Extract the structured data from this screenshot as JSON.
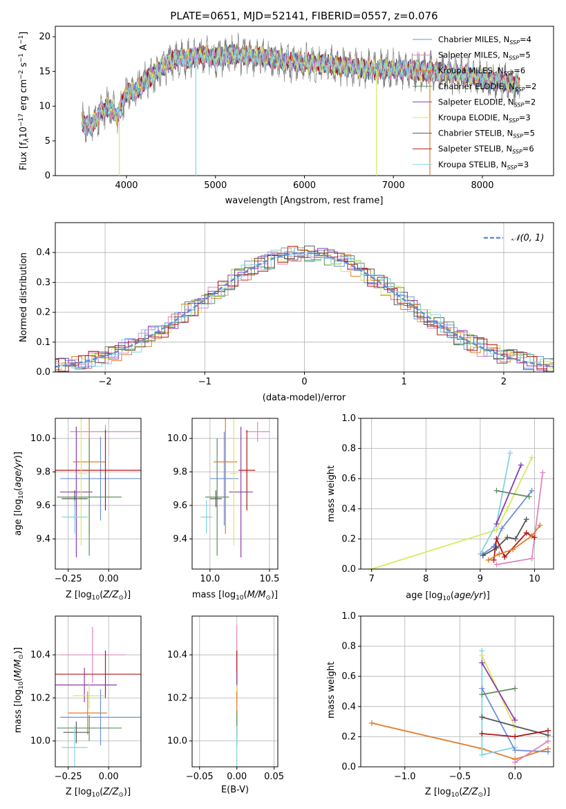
{
  "figure": {
    "title": "PLATE=0651, MJD=52141, FIBERID=0557, z=0.076"
  },
  "colors": {
    "chabrier_miles": "#6a8fe0",
    "salpeter_miles": "#e085c2",
    "kroupa_miles": "#e07b28",
    "chabrier_elodie": "#5b8f5b",
    "salpeter_elodie": "#8e3ab0",
    "kroupa_elodie": "#d9e85c",
    "chabrier_stelib": "#555555",
    "salpeter_stelib": "#b01515",
    "kroupa_stelib": "#7fd4e0",
    "data": "#808080",
    "gauss": "#5b8fd9"
  },
  "chart_data": [
    {
      "id": "spectrum",
      "type": "line",
      "xlabel": "wavelength [Angstrom, rest frame]",
      "ylabel": "Flux [f_λ10^-17 erg cm^-2 s^-1 A^-1]",
      "xlim": [
        3200,
        8800
      ],
      "ylim": [
        0,
        21.5
      ],
      "xticks": [
        4000,
        5000,
        6000,
        7000,
        8000
      ],
      "yticks": [
        0,
        5,
        10,
        15,
        20
      ],
      "continuum": {
        "x": [
          3500,
          3600,
          3700,
          3800,
          3900,
          4000,
          4100,
          4200,
          4300,
          4400,
          4500,
          4600,
          4700,
          4800,
          4900,
          5000,
          5200,
          5400,
          5600,
          5800,
          6000,
          6200,
          6400,
          6600,
          6800,
          7000,
          7200,
          7400,
          7600,
          7800,
          8000,
          8200,
          8400
        ],
        "y": [
          7.5,
          7.0,
          9.0,
          10.0,
          8.5,
          12.0,
          12.0,
          13.5,
          14.5,
          15.5,
          16.5,
          17.0,
          16.8,
          17.2,
          17.3,
          17.0,
          17.5,
          17.2,
          17.0,
          16.5,
          16.3,
          16.0,
          15.8,
          15.5,
          15.3,
          15.4,
          15.2,
          15.0,
          14.8,
          14.5,
          14.0,
          13.5,
          13.0
        ]
      },
      "legend": [
        {
          "label": "Chabrier MILES, N",
          "sub": "SSP",
          "tail": "=4",
          "color_key": "chabrier_miles"
        },
        {
          "label": "Salpeter MILES, N",
          "sub": "SSP",
          "tail": "=5",
          "color_key": "salpeter_miles"
        },
        {
          "label": "Kroupa MILES, N",
          "sub": "SSP",
          "tail": "=6",
          "color_key": "kroupa_miles"
        },
        {
          "label": "Chabrier ELODIE, N",
          "sub": "SSP",
          "tail": "=2",
          "color_key": "chabrier_elodie"
        },
        {
          "label": "Salpeter ELODIE, N",
          "sub": "SSP",
          "tail": "=2",
          "color_key": "salpeter_elodie"
        },
        {
          "label": "Kroupa ELODIE, N",
          "sub": "SSP",
          "tail": "=3",
          "color_key": "kroupa_elodie"
        },
        {
          "label": "Chabrier STELIB, N",
          "sub": "SSP",
          "tail": "=5",
          "color_key": "chabrier_stelib"
        },
        {
          "label": "Salpeter STELIB, N",
          "sub": "SSP",
          "tail": "=6",
          "color_key": "salpeter_stelib"
        },
        {
          "label": "Kroupa STELIB, N",
          "sub": "SSP",
          "tail": "=3",
          "color_key": "kroupa_stelib"
        }
      ]
    },
    {
      "id": "residuals",
      "type": "histogram",
      "xlabel": "(data-model)/error",
      "ylabel": "Normed distribution",
      "xlim": [
        -2.5,
        2.5
      ],
      "ylim": [
        0,
        0.5
      ],
      "xticks": [
        -2,
        -1,
        0,
        1,
        2
      ],
      "yticks": [
        0.0,
        0.1,
        0.2,
        0.3,
        0.4
      ],
      "legend": "𝒩(0, 1)",
      "gauss_mean": 0,
      "gauss_sigma": 1,
      "grid": true
    },
    {
      "id": "age_vs_Z",
      "type": "scatter",
      "xlabel": "Z [log10(Z/Z⊙)]",
      "ylabel": "age [log10(age/yr)]",
      "xlim": [
        -0.33,
        0.2
      ],
      "ylim": [
        9.22,
        10.12
      ],
      "xticks": [
        -0.25,
        0.0
      ],
      "yticks": [
        9.4,
        9.6,
        9.8,
        10.0
      ],
      "points": [
        {
          "key": "salpeter_miles",
          "x": -0.02,
          "y": 10.04,
          "xe": 0.22,
          "ye": 0.04
        },
        {
          "key": "chabrier_miles",
          "x": -0.05,
          "y": 9.76,
          "xe": 0.25,
          "ye": 0.25
        },
        {
          "key": "kroupa_miles",
          "x": -0.12,
          "y": 9.86,
          "xe": 0.1,
          "ye": 0.43
        },
        {
          "key": "salpeter_stelib",
          "x": -0.02,
          "y": 9.81,
          "xe": 0.35,
          "ye": 0.24
        },
        {
          "key": "salpeter_elodie",
          "x": -0.2,
          "y": 9.68,
          "xe": 0.1,
          "ye": 0.39
        },
        {
          "key": "kroupa_elodie",
          "x": -0.17,
          "y": 9.79,
          "xe": 0.04,
          "ye": 0.43
        },
        {
          "key": "chabrier_elodie",
          "x": -0.12,
          "y": 9.65,
          "xe": 0.2,
          "ye": 0.35
        },
        {
          "key": "chabrier_stelib",
          "x": -0.21,
          "y": 9.64,
          "xe": 0.08,
          "ye": 0.05
        },
        {
          "key": "kroupa_stelib",
          "x": -0.21,
          "y": 9.53,
          "xe": 0.08,
          "ye": 0.1
        }
      ]
    },
    {
      "id": "age_vs_mass",
      "type": "scatter",
      "xlabel": "mass [log10(M/M⊙)]",
      "xlim": [
        9.85,
        10.57
      ],
      "ylim": [
        9.22,
        10.12
      ],
      "xticks": [
        10.0,
        10.5
      ],
      "yticks": [
        9.4,
        9.6,
        9.8,
        10.0
      ],
      "points": [
        {
          "key": "salpeter_miles",
          "x": 10.4,
          "y": 10.04,
          "xe": 0.1,
          "ye": 0.06
        },
        {
          "key": "chabrier_miles",
          "x": 10.12,
          "y": 9.76,
          "xe": 0.12,
          "ye": 0.28
        },
        {
          "key": "kroupa_miles",
          "x": 10.13,
          "y": 9.86,
          "xe": 0.1,
          "ye": 0.43
        },
        {
          "key": "salpeter_stelib",
          "x": 10.31,
          "y": 9.81,
          "xe": 0.07,
          "ye": 0.24
        },
        {
          "key": "salpeter_elodie",
          "x": 10.26,
          "y": 9.68,
          "xe": 0.1,
          "ye": 0.39
        },
        {
          "key": "kroupa_elodie",
          "x": 10.2,
          "y": 9.79,
          "xe": 0.03,
          "ye": 0.43
        },
        {
          "key": "chabrier_elodie",
          "x": 10.06,
          "y": 9.65,
          "xe": 0.1,
          "ye": 0.35
        },
        {
          "key": "chabrier_stelib",
          "x": 10.05,
          "y": 9.64,
          "xe": 0.05,
          "ye": 0.05
        },
        {
          "key": "kroupa_stelib",
          "x": 9.97,
          "y": 9.53,
          "xe": 0.05,
          "ye": 0.1
        }
      ]
    },
    {
      "id": "weight_vs_age",
      "type": "line",
      "xlabel": "age [log10(age/yr)]",
      "ylabel": "mass weight",
      "xlim": [
        6.8,
        10.35
      ],
      "ylim": [
        0,
        1.0
      ],
      "xticks": [
        7,
        8,
        9,
        10
      ],
      "yticks": [
        0.0,
        0.2,
        0.4,
        0.6,
        0.8,
        1.0
      ],
      "series": [
        {
          "key": "kroupa_elodie",
          "points": [
            [
              7.0,
              0.0
            ],
            [
              9.3,
              0.26
            ],
            [
              9.5,
              0.4
            ],
            [
              9.95,
              0.74
            ]
          ]
        },
        {
          "key": "kroupa_stelib",
          "points": [
            [
              9.0,
              0.1
            ],
            [
              9.3,
              0.3
            ],
            [
              9.55,
              0.77
            ]
          ]
        },
        {
          "key": "salpeter_elodie",
          "points": [
            [
              9.3,
              0.3
            ],
            [
              9.75,
              0.69
            ]
          ]
        },
        {
          "key": "chabrier_miles",
          "points": [
            [
              9.05,
              0.1
            ],
            [
              9.25,
              0.15
            ],
            [
              9.4,
              0.27
            ],
            [
              9.95,
              0.52
            ]
          ]
        },
        {
          "key": "chabrier_elodie",
          "points": [
            [
              9.3,
              0.52
            ],
            [
              9.9,
              0.48
            ]
          ]
        },
        {
          "key": "salpeter_miles",
          "points": [
            [
              9.3,
              0.03
            ],
            [
              9.95,
              0.07
            ],
            [
              10.15,
              0.64
            ]
          ]
        },
        {
          "key": "chabrier_stelib",
          "points": [
            [
              9.05,
              0.09
            ],
            [
              9.3,
              0.14
            ],
            [
              9.5,
              0.21
            ],
            [
              9.65,
              0.2
            ],
            [
              9.85,
              0.33
            ]
          ]
        },
        {
          "key": "salpeter_stelib",
          "points": [
            [
              9.25,
              0.06
            ],
            [
              9.3,
              0.2
            ],
            [
              9.45,
              0.08
            ],
            [
              9.85,
              0.24
            ],
            [
              10.0,
              0.21
            ]
          ]
        },
        {
          "key": "kroupa_miles",
          "points": [
            [
              9.15,
              0.06
            ],
            [
              9.35,
              0.1
            ],
            [
              9.6,
              0.13
            ],
            [
              9.95,
              0.22
            ],
            [
              10.1,
              0.29
            ]
          ]
        }
      ]
    },
    {
      "id": "mass_vs_Z",
      "type": "scatter",
      "xlabel": "Z [log10(Z/Z⊙)]",
      "ylabel": "mass [log10(M/M⊙)]",
      "xlim": [
        -0.33,
        0.2
      ],
      "ylim": [
        9.88,
        10.58
      ],
      "xticks": [
        -0.25,
        0.0
      ],
      "yticks": [
        10.0,
        10.2,
        10.4
      ],
      "points": [
        {
          "key": "salpeter_miles",
          "x": -0.1,
          "y": 10.4,
          "xe": 0.2,
          "ye": 0.13
        },
        {
          "key": "salpeter_stelib",
          "x": -0.02,
          "y": 10.31,
          "xe": 0.35,
          "ye": 0.11
        },
        {
          "key": "salpeter_elodie",
          "x": -0.15,
          "y": 10.26,
          "xe": 0.2,
          "ye": 0.08
        },
        {
          "key": "kroupa_elodie",
          "x": -0.12,
          "y": 10.21,
          "xe": 0.1,
          "ye": 0.06
        },
        {
          "key": "kroupa_miles",
          "x": -0.13,
          "y": 10.13,
          "xe": 0.12,
          "ye": 0.1
        },
        {
          "key": "chabrier_miles",
          "x": -0.05,
          "y": 10.11,
          "xe": 0.25,
          "ye": 0.13
        },
        {
          "key": "chabrier_elodie",
          "x": -0.12,
          "y": 10.06,
          "xe": 0.2,
          "ye": 0.06
        },
        {
          "key": "chabrier_stelib",
          "x": -0.2,
          "y": 10.04,
          "xe": 0.08,
          "ye": 0.05
        },
        {
          "key": "kroupa_stelib",
          "x": -0.21,
          "y": 9.97,
          "xe": 0.08,
          "ye": 0.1
        }
      ]
    },
    {
      "id": "mass_vs_ebv",
      "type": "scatter",
      "xlabel": "E(B-V)",
      "xlim": [
        -0.06,
        0.055
      ],
      "ylim": [
        9.88,
        10.58
      ],
      "xticks": [
        -0.05,
        0.0,
        0.05
      ],
      "yticks": [
        10.0,
        10.2,
        10.4
      ],
      "points": [
        {
          "key": "salpeter_miles",
          "x": 0,
          "y": 10.4,
          "xe": 0,
          "ye": 0.14
        },
        {
          "key": "salpeter_stelib",
          "x": 0,
          "y": 10.31,
          "xe": 0,
          "ye": 0.11
        },
        {
          "key": "salpeter_elodie",
          "x": 0,
          "y": 10.26,
          "xe": 0,
          "ye": 0.06
        },
        {
          "key": "kroupa_elodie",
          "x": 0,
          "y": 10.21,
          "xe": 0,
          "ye": 0.05
        },
        {
          "key": "kroupa_miles",
          "x": 0,
          "y": 10.13,
          "xe": 0,
          "ye": 0.1
        },
        {
          "key": "chabrier_elodie",
          "x": 0,
          "y": 10.06,
          "xe": 0,
          "ye": 0.08
        },
        {
          "key": "kroupa_stelib",
          "x": 0,
          "y": 9.97,
          "xe": 0,
          "ye": 0.1
        }
      ]
    },
    {
      "id": "weight_vs_Z",
      "type": "line",
      "xlabel": "Z [log10(Z/Z⊙)]",
      "ylabel": "mass weight",
      "xlim": [
        -1.4,
        0.35
      ],
      "ylim": [
        0,
        1.0
      ],
      "xticks": [
        -1.0,
        -0.5,
        0.0
      ],
      "yticks": [
        0.0,
        0.2,
        0.4,
        0.6,
        0.8,
        1.0
      ],
      "series": [
        {
          "key": "kroupa_miles",
          "points": [
            [
              -1.3,
              0.29
            ],
            [
              -0.3,
              0.12
            ],
            [
              0.0,
              0.05
            ],
            [
              0.3,
              0.12
            ]
          ]
        },
        {
          "key": "kroupa_stelib",
          "points": [
            [
              -0.3,
              0.77
            ],
            [
              -0.3,
              0.08
            ],
            [
              0.0,
              0.13
            ]
          ]
        },
        {
          "key": "kroupa_elodie",
          "points": [
            [
              -0.3,
              0.74
            ],
            [
              0.0,
              0.26
            ]
          ]
        },
        {
          "key": "salpeter_elodie",
          "points": [
            [
              -0.3,
              0.69
            ],
            [
              0.0,
              0.31
            ]
          ]
        },
        {
          "key": "chabrier_miles",
          "points": [
            [
              -0.3,
              0.52
            ],
            [
              0.0,
              0.11
            ],
            [
              0.3,
              0.1
            ]
          ]
        },
        {
          "key": "chabrier_elodie",
          "points": [
            [
              -0.3,
              0.48
            ],
            [
              0.0,
              0.52
            ]
          ]
        },
        {
          "key": "chabrier_stelib",
          "points": [
            [
              -0.3,
              0.33
            ],
            [
              0.3,
              0.21
            ]
          ]
        },
        {
          "key": "salpeter_stelib",
          "points": [
            [
              -0.3,
              0.22
            ],
            [
              0.0,
              0.2
            ],
            [
              0.3,
              0.24
            ]
          ]
        },
        {
          "key": "salpeter_miles",
          "points": [
            [
              0.0,
              0.03
            ],
            [
              0.3,
              0.17
            ]
          ]
        }
      ]
    }
  ]
}
